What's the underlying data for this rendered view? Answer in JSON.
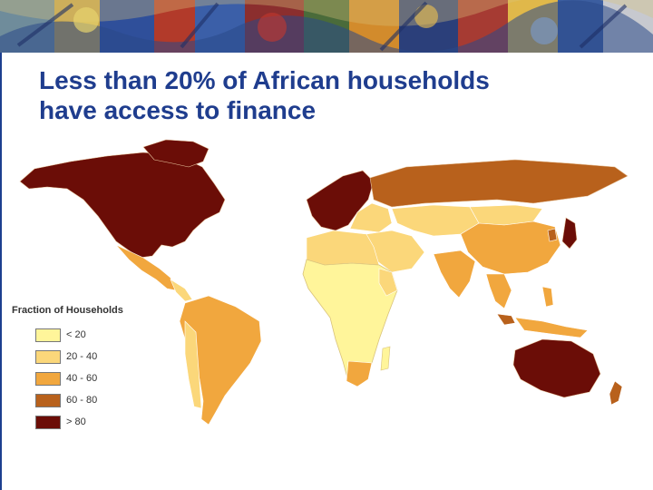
{
  "slide": {
    "title_line1": "Less than 20% of African households",
    "title_line2": "have access to finance"
  },
  "legend": {
    "title": "Fraction of Households",
    "items": [
      {
        "label": "< 20",
        "color": "#fff59a"
      },
      {
        "label": "20 - 40",
        "color": "#fbd77a"
      },
      {
        "label": "40 - 60",
        "color": "#f1a73e"
      },
      {
        "label": "60 - 80",
        "color": "#b8611c"
      },
      {
        "label": "> 80",
        "color": "#6b0d07"
      }
    ]
  },
  "colors": {
    "title": "#1f3d8e",
    "accent_rule": "#1c3f8f"
  }
}
